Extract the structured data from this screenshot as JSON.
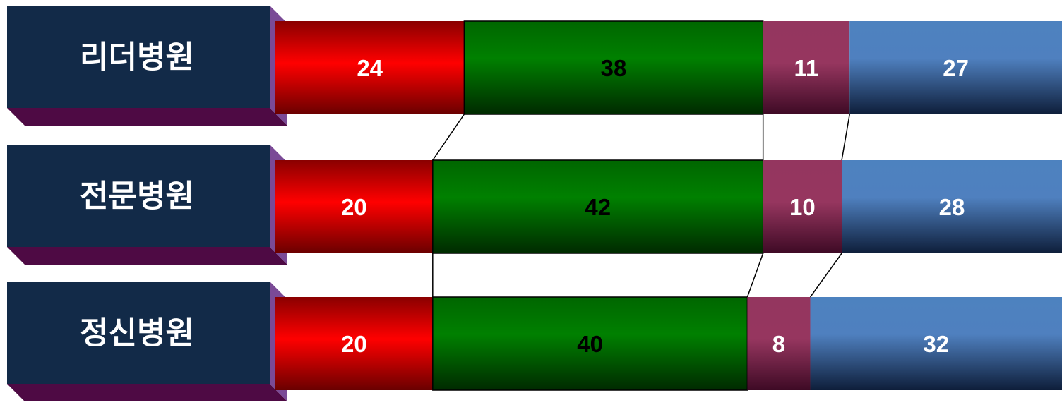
{
  "chart_data": {
    "type": "bar",
    "stacked": "percent",
    "orientation": "horizontal",
    "categories": [
      "리더병원",
      "전문병원",
      "정신병원"
    ],
    "series": [
      {
        "values": [
          24,
          20,
          20
        ],
        "color": "#e00000",
        "label_color": "#ffffff"
      },
      {
        "values": [
          38,
          42,
          40
        ],
        "color": "#007a00",
        "label_color": "#000000"
      },
      {
        "values": [
          11,
          10,
          8
        ],
        "color": "#8c3060",
        "label_color": "#ffffff"
      },
      {
        "values": [
          27,
          28,
          32
        ],
        "color": "#4a7ab5",
        "label_color": "#ffffff"
      }
    ],
    "xlim": [
      0,
      100
    ],
    "grid": false,
    "legend": "none",
    "connector_lines": true,
    "label_box_color": "#122a48",
    "label_shadow_color": "#4e0a44"
  }
}
